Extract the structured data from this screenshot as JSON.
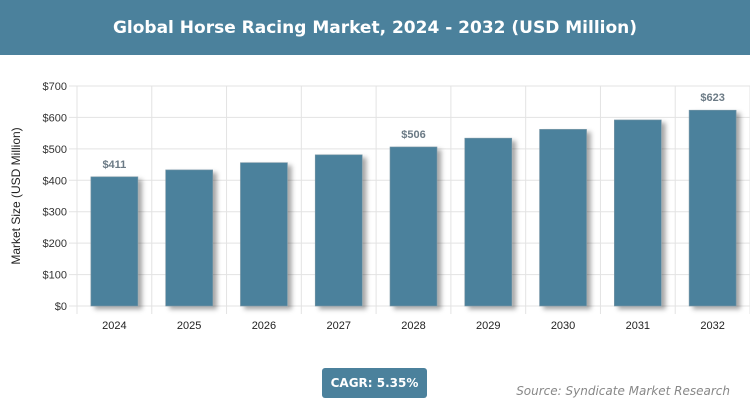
{
  "title": "Global Horse Racing Market, 2024 - 2032 (USD Million)",
  "cagr_label": "CAGR: 5.35%",
  "source": "Source: Syndicate Market Research",
  "colors": {
    "bar": "#4b819c",
    "banner": "#4b819c"
  },
  "chart_data": {
    "type": "bar",
    "title": "Global Horse Racing Market, 2024 - 2032 (USD Million)",
    "xlabel": "",
    "ylabel": "Market Size (USD Million)",
    "categories": [
      "2024",
      "2025",
      "2026",
      "2027",
      "2028",
      "2029",
      "2030",
      "2031",
      "2032"
    ],
    "values": [
      411,
      433,
      456,
      481,
      506,
      534,
      562,
      592,
      623
    ],
    "data_labels": {
      "2024": "$411",
      "2028": "$506",
      "2032": "$623"
    },
    "ylim": [
      0,
      700
    ],
    "yticks": [
      "$0",
      "$100",
      "$200",
      "$300",
      "$400",
      "$500",
      "$600",
      "$700"
    ],
    "grid": true
  }
}
